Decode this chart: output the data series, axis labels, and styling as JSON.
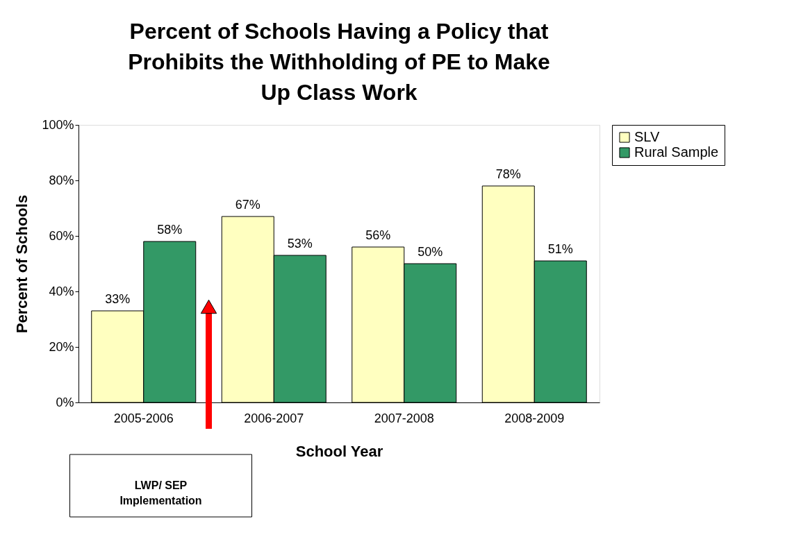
{
  "chart_data": {
    "type": "bar",
    "title": "Percent of Schools Having a Policy that Prohibits the Withholding of PE to Make Up Class Work",
    "xlabel": "School Year",
    "ylabel": "Percent of Schools",
    "categories": [
      "2005-2006",
      "2006-2007",
      "2007-2008",
      "2008-2009"
    ],
    "series": [
      {
        "name": "SLV",
        "color": "#ffffc0",
        "values": [
          33,
          67,
          56,
          78
        ],
        "value_labels": [
          "33%",
          "67%",
          "56%",
          "78%"
        ]
      },
      {
        "name": "Rural Sample",
        "color": "#339966",
        "values": [
          58,
          53,
          50,
          51
        ],
        "value_labels": [
          "58%",
          "53%",
          "50%",
          "51%"
        ]
      }
    ],
    "ylim": [
      0,
      100
    ],
    "yticks": [
      {
        "value": 0,
        "label": "0%"
      },
      {
        "value": 20,
        "label": "20%"
      },
      {
        "value": 40,
        "label": "40%"
      },
      {
        "value": 60,
        "label": "60%"
      },
      {
        "value": 80,
        "label": "80%"
      },
      {
        "value": 100,
        "label": "100%"
      }
    ],
    "grid": false,
    "legend": "right",
    "annotations": [
      "LWP/ SEP Implementation"
    ]
  }
}
